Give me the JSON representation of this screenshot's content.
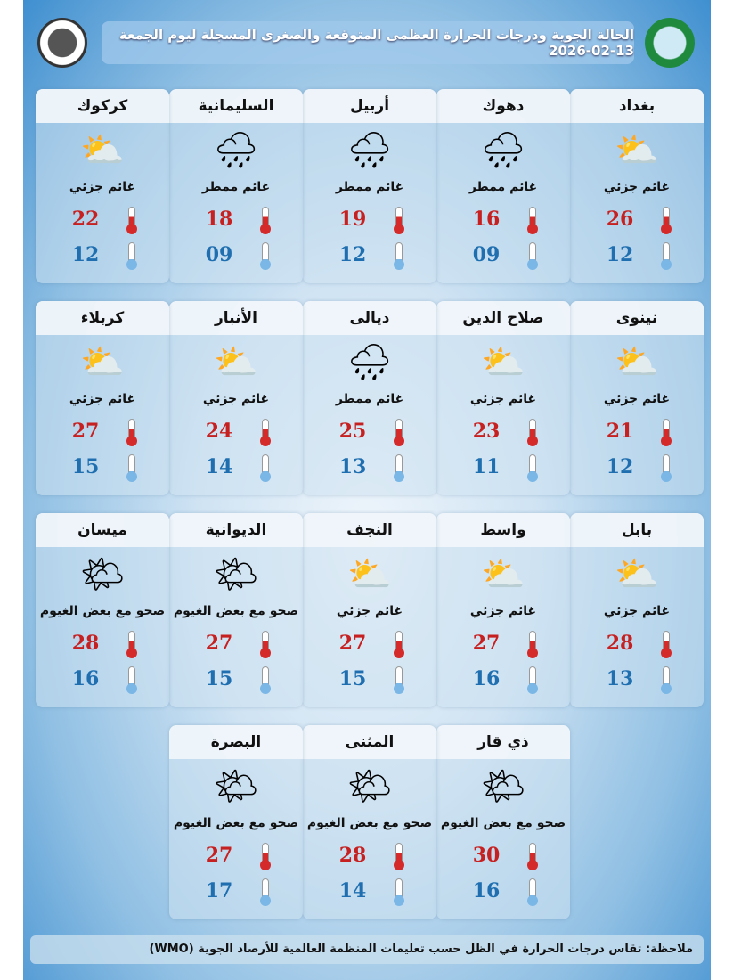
{
  "header": {
    "title": "الحالة الجوية ودرجات الحرارة العظمى المتوقعة والصغرى المسجلة ليوم الجمعة 13-02-2026"
  },
  "cities": [
    {
      "name": "بغداد",
      "condition": "غائم جزئي",
      "icon": "partly-cloudy-icon",
      "max": "26",
      "min": "12"
    },
    {
      "name": "دهوك",
      "condition": "غائم ممطر",
      "icon": "rain-cloud-icon",
      "max": "16",
      "min": "09"
    },
    {
      "name": "أربيل",
      "condition": "غائم ممطر",
      "icon": "rain-cloud-icon",
      "max": "19",
      "min": "12"
    },
    {
      "name": "السليمانية",
      "condition": "غائم ممطر",
      "icon": "rain-cloud-icon",
      "max": "18",
      "min": "09"
    },
    {
      "name": "كركوك",
      "condition": "غائم جزئي",
      "icon": "partly-cloudy-icon",
      "max": "22",
      "min": "12"
    },
    {
      "name": "نينوى",
      "condition": "غائم جزئي",
      "icon": "partly-cloudy-icon",
      "max": "21",
      "min": "12"
    },
    {
      "name": "صلاح الدين",
      "condition": "غائم جزئي",
      "icon": "partly-cloudy-icon",
      "max": "23",
      "min": "11"
    },
    {
      "name": "ديالى",
      "condition": "غائم ممطر",
      "icon": "rain-cloud-icon",
      "max": "25",
      "min": "13"
    },
    {
      "name": "الأنبار",
      "condition": "غائم جزئي",
      "icon": "partly-cloudy-icon",
      "max": "24",
      "min": "14"
    },
    {
      "name": "كربلاء",
      "condition": "غائم جزئي",
      "icon": "partly-cloudy-icon",
      "max": "27",
      "min": "15"
    },
    {
      "name": "بابل",
      "condition": "غائم جزئي",
      "icon": "partly-cloudy-icon",
      "max": "28",
      "min": "13"
    },
    {
      "name": "واسط",
      "condition": "غائم جزئي",
      "icon": "partly-cloudy-icon",
      "max": "27",
      "min": "16"
    },
    {
      "name": "النجف",
      "condition": "غائم جزئي",
      "icon": "partly-cloudy-icon",
      "max": "27",
      "min": "15"
    },
    {
      "name": "الديوانية",
      "condition": "صحو مع بعض الغيوم",
      "icon": "sun-few-clouds-icon",
      "max": "27",
      "min": "15"
    },
    {
      "name": "ميسان",
      "condition": "صحو مع بعض الغيوم",
      "icon": "sun-few-clouds-icon",
      "max": "28",
      "min": "16"
    },
    {
      "name": "ذي قار",
      "condition": "صحو مع بعض الغيوم",
      "icon": "sun-few-clouds-icon",
      "max": "30",
      "min": "16"
    },
    {
      "name": "المثنى",
      "condition": "صحو مع بعض الغيوم",
      "icon": "sun-few-clouds-icon",
      "max": "28",
      "min": "14"
    },
    {
      "name": "البصرة",
      "condition": "صحو مع بعض الغيوم",
      "icon": "sun-few-clouds-icon",
      "max": "27",
      "min": "17"
    }
  ],
  "note": "ملاحظة: تقاس درجات الحرارة في الظل حسب تعليمات المنظمة العالمية للأرصاد الجوية (WMO)",
  "colors": {
    "max": "#c62020",
    "min": "#1f6fb0"
  }
}
